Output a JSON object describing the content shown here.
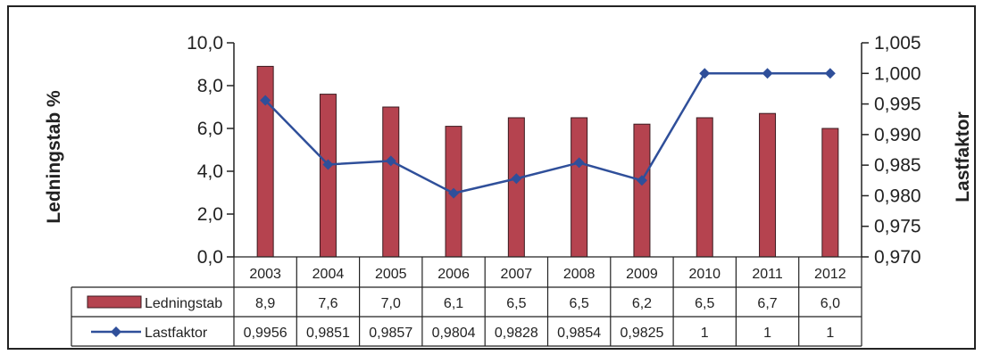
{
  "chart_data": {
    "type": "bar",
    "categories": [
      "2003",
      "2004",
      "2005",
      "2006",
      "2007",
      "2008",
      "2009",
      "2010",
      "2011",
      "2012"
    ],
    "series": [
      {
        "name": "Ledningstab",
        "type": "bar",
        "axis": "left",
        "values": [
          8.9,
          7.6,
          7.0,
          6.1,
          6.5,
          6.5,
          6.2,
          6.5,
          6.7,
          6.0
        ],
        "labels": [
          "8,9",
          "7,6",
          "7,0",
          "6,1",
          "6,5",
          "6,5",
          "6,2",
          "6,5",
          "6,7",
          "6,0"
        ],
        "color": "#b5434f"
      },
      {
        "name": "Lastfaktor",
        "type": "line",
        "axis": "right",
        "values": [
          0.9956,
          0.9851,
          0.9857,
          0.9804,
          0.9828,
          0.9854,
          0.9825,
          1,
          1,
          1
        ],
        "labels": [
          "0,9956",
          "0,9851",
          "0,9857",
          "0,9804",
          "0,9828",
          "0,9854",
          "0,9825",
          "1",
          "1",
          "1"
        ],
        "color": "#2f4f9a",
        "marker": "diamond"
      }
    ],
    "ylabel": "Ledningstab %",
    "y2label": "Lastfaktor",
    "ylim": [
      0,
      10
    ],
    "y2lim": [
      0.97,
      1.005
    ],
    "yticks": [
      "0,0",
      "2,0",
      "4,0",
      "6,0",
      "8,0",
      "10,0"
    ],
    "y2ticks": [
      "0,970",
      "0,975",
      "0,980",
      "0,985",
      "0,990",
      "0,995",
      "1,000",
      "1,005"
    ],
    "grid": false,
    "legend": "data table"
  }
}
